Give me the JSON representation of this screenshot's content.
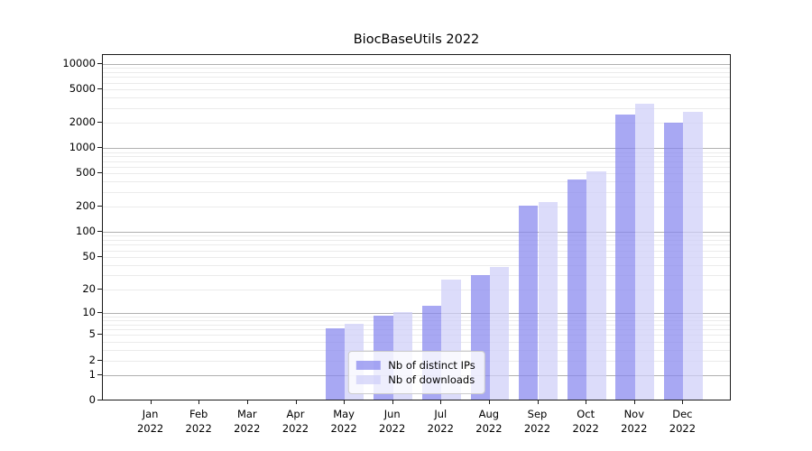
{
  "chart_data": {
    "type": "bar",
    "title": "BiocBaseUtils 2022",
    "year_label": "2022",
    "categories": [
      "Jan",
      "Feb",
      "Mar",
      "Apr",
      "May",
      "Jun",
      "Jul",
      "Aug",
      "Sep",
      "Oct",
      "Nov",
      "Dec"
    ],
    "series": [
      {
        "name": "Nb of distinct IPs",
        "color": "#8787ef",
        "alpha": 0.72,
        "values": [
          0,
          0,
          0,
          0,
          6,
          9,
          12,
          29,
          200,
          410,
          2450,
          1960
        ]
      },
      {
        "name": "Nb of downloads",
        "color": "#cecef8",
        "alpha": 0.72,
        "values": [
          0,
          0,
          0,
          0,
          7,
          10,
          26,
          37,
          221,
          516,
          3290,
          2610
        ]
      }
    ],
    "y_ticks": [
      0,
      1,
      2,
      5,
      10,
      20,
      50,
      100,
      200,
      500,
      1000,
      2000,
      5000,
      10000
    ],
    "y_major_ticks": [
      1,
      10,
      100,
      1000,
      10000
    ],
    "yscale": "log1p",
    "ylim": [
      0,
      12800
    ],
    "xlabel": "",
    "ylabel": "",
    "grid": {
      "on": true,
      "major_color": "#b0b0b0",
      "minor_color": "#ebebeb"
    },
    "legend": {
      "position": "lower center"
    }
  }
}
